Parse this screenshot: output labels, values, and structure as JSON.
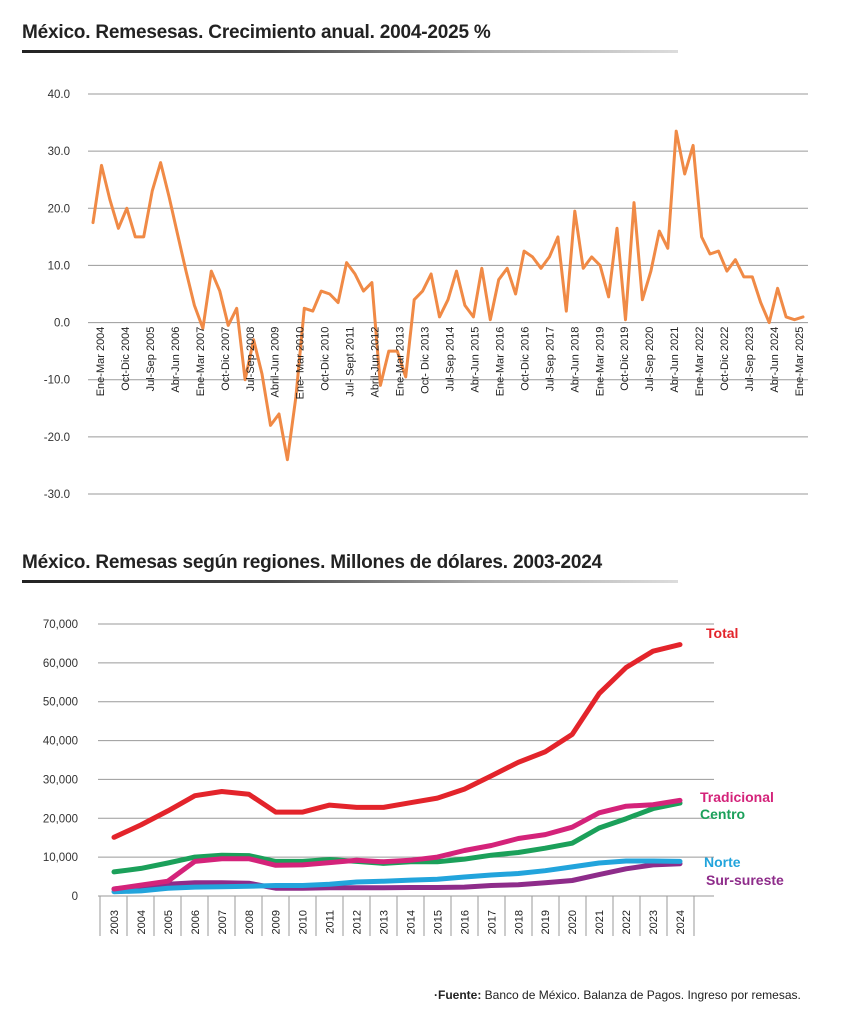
{
  "chart_data": [
    {
      "type": "line",
      "title": "México. Remesesas. Crecimiento anual. 2004-2025 %",
      "xlabel": "",
      "ylabel": "",
      "ylim": [
        -30,
        40
      ],
      "yticks": [
        "40.0",
        "30.0",
        "20.0",
        "10.0",
        "0.0",
        "-10.0",
        "-20.0",
        "-30.0"
      ],
      "grid": true,
      "tick_labels": [
        "Ene-Mar 2004",
        "Oct-Dic 2004",
        "Jul-Sep 2005",
        "Abr-Jun 2006",
        "Ene-Mar 2007",
        "Oct-Dic 2007",
        "Jul-Sep 2008",
        "Abril-Jun 2009",
        "Ene- Mar 2010",
        "Oct-Dic 2010",
        "Jul- Sept 2011",
        "Abril-Jun 2012",
        "Ene-Mar 2013",
        "Oct- Dic 2013",
        "Jul-Sep 2014",
        "Abr-Jun 2015",
        "Ene-Mar 2016",
        "Oct-Dic 2016",
        "Jul-Sep 2017",
        "Abr-Jun 2018",
        "Ene-Mar 2019",
        "Oct-Dic 2019",
        "Jul-Sep 2020",
        "Abr-Jun 2021",
        "Ene-Mar 2022",
        "Oct-Dic 2022",
        "Jul-Sep 2023",
        "Abr-Jun 2024",
        "Ene-Mar 2025"
      ],
      "series": [
        {
          "color": "#f08a46",
          "values": [
            17.5,
            27.5,
            21.5,
            16.5,
            20.0,
            15.0,
            15.0,
            23.0,
            28.0,
            22.0,
            15.5,
            9.0,
            3.0,
            -1.0,
            9.0,
            5.5,
            -0.5,
            2.5,
            -10.0,
            -3.0,
            -9.0,
            -18.0,
            -16.0,
            -24.0,
            -13.0,
            2.5,
            2.0,
            5.5,
            5.0,
            3.5,
            10.5,
            8.5,
            5.5,
            7.0,
            -11.0,
            -5.0,
            -5.0,
            -9.5,
            4.0,
            5.5,
            8.5,
            1.0,
            4.0,
            9.0,
            3.0,
            1.0,
            9.5,
            0.5,
            7.5,
            9.5,
            5.0,
            12.5,
            11.5,
            9.5,
            11.5,
            15.0,
            2.0,
            19.5,
            9.5,
            11.5,
            10.0,
            4.5,
            16.5,
            0.5,
            21.0,
            4.0,
            9.0,
            16.0,
            13.0,
            33.5,
            26.0,
            31.0,
            15.0,
            12.0,
            12.5,
            9.0,
            11.0,
            8.0,
            8.0,
            3.5,
            0.0,
            6.0,
            1.0,
            0.5,
            1.0
          ]
        }
      ]
    },
    {
      "type": "line",
      "title": "México. Remesas según regiones. Millones de dólares. 2003-2024",
      "xlabel": "",
      "ylabel": "",
      "ylim": [
        0,
        70000
      ],
      "yticks": [
        "70,000",
        "60,000",
        "50,000",
        "40,000",
        "30,000",
        "20,000",
        "10,000",
        "0"
      ],
      "grid": true,
      "categories": [
        "2003",
        "2004",
        "2005",
        "2006",
        "2007",
        "2008",
        "2009",
        "2010",
        "2011",
        "2012",
        "2013",
        "2014",
        "2015",
        "2016",
        "2017",
        "2018",
        "2019",
        "2020",
        "2021",
        "2022",
        "2023",
        "2024"
      ],
      "legend": "right, at line ends",
      "series": [
        {
          "name": "Total",
          "color": "#e3242b",
          "values": [
            15100,
            18300,
            21900,
            25800,
            26900,
            26200,
            21600,
            21600,
            23400,
            22800,
            22800,
            24000,
            25200,
            27500,
            30900,
            34400,
            37100,
            41600,
            52100,
            58800,
            63000,
            64700
          ]
        },
        {
          "name": "Tradicional",
          "color": "#d4237a",
          "values": [
            1800,
            2800,
            3800,
            8900,
            9600,
            9600,
            7900,
            8000,
            8600,
            9200,
            8800,
            9200,
            10000,
            11700,
            13000,
            14800,
            15800,
            17700,
            21400,
            23100,
            23500,
            24600
          ]
        },
        {
          "name": "Centro",
          "color": "#1ba05a",
          "values": [
            6200,
            7100,
            8500,
            10000,
            10500,
            10400,
            8900,
            8900,
            9400,
            8900,
            8400,
            8800,
            8800,
            9500,
            10500,
            11200,
            12300,
            13600,
            17500,
            19900,
            22500,
            23900
          ]
        },
        {
          "name": "Norte",
          "color": "#22a4dc",
          "values": [
            1100,
            1300,
            2000,
            2300,
            2400,
            2500,
            2700,
            2700,
            3000,
            3600,
            3800,
            4100,
            4300,
            4900,
            5400,
            5800,
            6500,
            7500,
            8500,
            9000,
            9000,
            8900
          ]
        },
        {
          "name": "Sur-sureste",
          "color": "#8e2c8a",
          "values": [
            1800,
            2500,
            3000,
            3400,
            3400,
            3300,
            2000,
            2000,
            2100,
            2100,
            2100,
            2200,
            2200,
            2300,
            2700,
            2900,
            3400,
            4000,
            5500,
            7000,
            8000,
            8300
          ]
        }
      ]
    }
  ],
  "source": {
    "label": "·Fuente:",
    "text": " Banco de México. Balanza de Pagos. Ingreso por remesas."
  }
}
